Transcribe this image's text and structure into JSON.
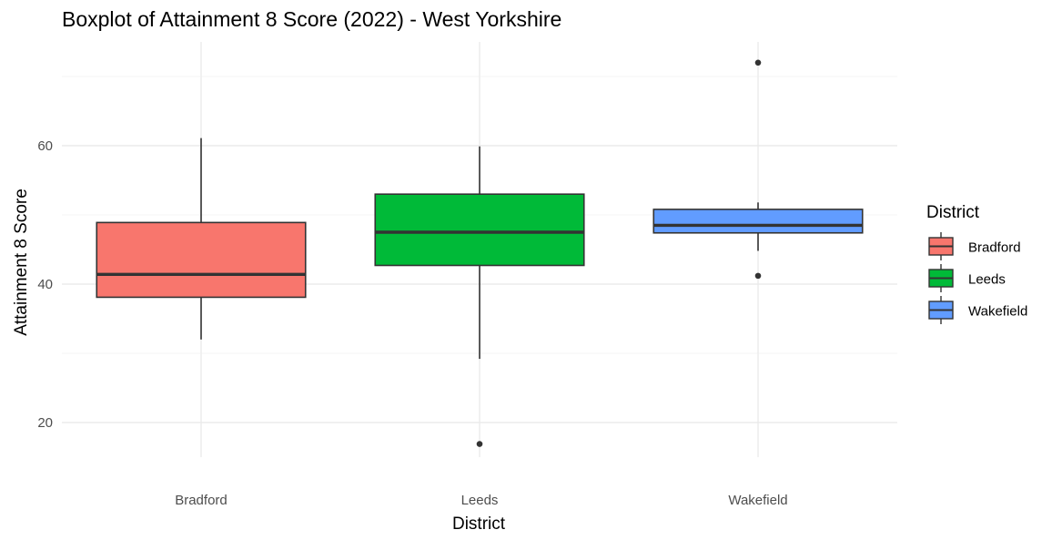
{
  "chart_data": {
    "type": "boxplot",
    "title": "Boxplot of Attainment 8 Score (2022) - West Yorkshire",
    "xlabel": "District",
    "ylabel": "Attainment 8 Score",
    "categories": [
      "Bradford",
      "Leeds",
      "Wakefield"
    ],
    "ylim": [
      15,
      75
    ],
    "yticks": [
      20,
      40,
      60
    ],
    "grid": true,
    "legend": {
      "title": "District",
      "position": "right"
    },
    "series": [
      {
        "name": "Bradford",
        "color": "#F8766D",
        "min": 32,
        "q1": 38.1,
        "median": 41.4,
        "q3": 48.9,
        "max": 61.1,
        "outliers": []
      },
      {
        "name": "Leeds",
        "color": "#00BA38",
        "min": 29.2,
        "q1": 42.7,
        "median": 47.5,
        "q3": 53,
        "max": 59.9,
        "outliers": [
          16.9
        ]
      },
      {
        "name": "Wakefield",
        "color": "#619CFF",
        "min": 44.8,
        "q1": 47.4,
        "median": 48.5,
        "q3": 50.8,
        "max": 51.8,
        "outliers": [
          72,
          41.2
        ]
      }
    ]
  }
}
